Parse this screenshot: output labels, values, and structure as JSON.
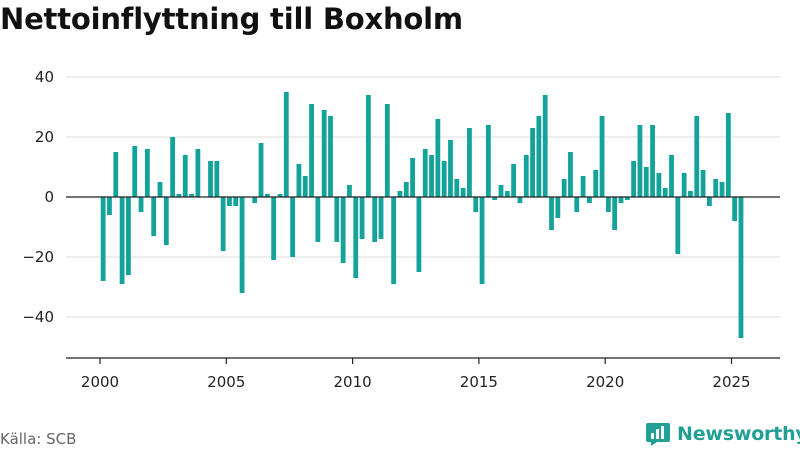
{
  "colors": {
    "bar": "#13a39a",
    "grid": "#dddddd",
    "axis": "#222222",
    "brand": "#22a096"
  },
  "footer": {
    "source": "Källa: SCB",
    "brand_name": "Newsworthy",
    "brand_logo_icon": "newsworthy-logo-icon"
  },
  "chart_data": {
    "type": "bar",
    "title": "Nettoinflyttning till Boxholm",
    "xlabel": "",
    "ylabel": "",
    "ylim": [
      -50,
      45
    ],
    "yticks": [
      40,
      20,
      0,
      -20,
      -40
    ],
    "yticklabels": [
      "40",
      "20",
      "0",
      "−20",
      "−40"
    ],
    "xlim": [
      1999.2,
      2026.9
    ],
    "xticks": [
      2000,
      2005,
      2010,
      2015,
      2020,
      2025
    ],
    "xticklabels": [
      "2000",
      "2005",
      "2010",
      "2015",
      "2020",
      "2025"
    ],
    "grid": true,
    "legend": "none",
    "x_unit": "quarter",
    "start": "2000-Q1",
    "values": [
      -28,
      -6,
      15,
      -29,
      -26,
      17,
      -5,
      16,
      -13,
      5,
      -16,
      20,
      1,
      14,
      1,
      16,
      0,
      12,
      12,
      -18,
      -3,
      -3,
      -32,
      0,
      -2,
      18,
      1,
      -21,
      1,
      35,
      -20,
      11,
      7,
      31,
      -15,
      29,
      27,
      -15,
      -22,
      4,
      -27,
      -14,
      34,
      -15,
      -14,
      31,
      -29,
      2,
      5,
      13,
      -25,
      16,
      14,
      26,
      12,
      19,
      6,
      3,
      23,
      -5,
      -29,
      24,
      -1,
      4,
      2,
      11,
      -2,
      14,
      23,
      27,
      34,
      -11,
      -7,
      6,
      15,
      -5,
      7,
      -2,
      9,
      27,
      -5,
      -11,
      -2,
      -1,
      12,
      24,
      10,
      24,
      8,
      3,
      14,
      -19,
      8,
      2,
      27,
      9,
      -3,
      6,
      5,
      28,
      -8,
      -47
    ]
  }
}
